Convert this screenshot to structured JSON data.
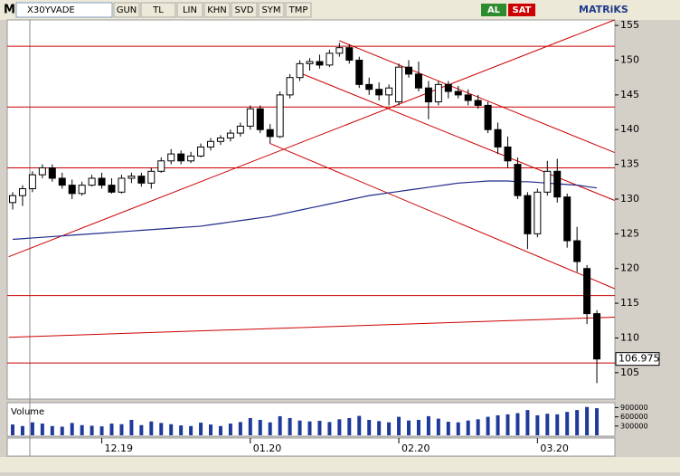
{
  "toolbar": {
    "menu": "M",
    "symbol": "X30YVADE",
    "buttons": [
      "GUN",
      "TL",
      "LIN",
      "KHN",
      "SVD",
      "SYM",
      "TMP"
    ],
    "buy": "AL",
    "sell": "SAT",
    "brand": "MATRiKS"
  },
  "chart_data": {
    "type": "candlestick",
    "categories": [
      null,
      null,
      null,
      null,
      null,
      null,
      null,
      null,
      null,
      "12.19",
      null,
      null,
      null,
      null,
      null,
      null,
      null,
      null,
      null,
      null,
      null,
      null,
      null,
      null,
      "01.20",
      null,
      null,
      null,
      null,
      null,
      null,
      null,
      null,
      null,
      null,
      null,
      null,
      null,
      null,
      "02.20",
      null,
      null,
      null,
      null,
      null,
      null,
      null,
      null,
      null,
      null,
      null,
      null,
      null,
      "03.20",
      null,
      null,
      null,
      null,
      null,
      null
    ],
    "open": [
      129.5,
      130.5,
      131.5,
      133.5,
      134.5,
      133,
      132,
      130.8,
      132,
      133,
      132,
      131,
      133,
      133.3,
      132.3,
      134,
      135.5,
      136.5,
      135.5,
      136.2,
      137.5,
      138.3,
      138.8,
      139.5,
      140.5,
      143,
      140,
      139,
      145,
      147.5,
      149.5,
      149.8,
      149.3,
      151,
      151.8,
      150,
      146.5,
      145.8,
      145,
      144,
      149,
      148,
      146,
      144,
      146.5,
      145.5,
      145,
      144.2,
      143.5,
      140,
      137.5,
      135,
      130.5,
      125,
      131,
      134,
      130.3,
      124,
      120,
      113.5
    ],
    "high": [
      131,
      132,
      134,
      135,
      135,
      133.8,
      132.8,
      132.5,
      133.5,
      133.8,
      133,
      133.5,
      133.8,
      133.8,
      134.5,
      136,
      137.2,
      137,
      136.8,
      138,
      138.8,
      139.2,
      140,
      141,
      143.5,
      143.5,
      140.8,
      145.5,
      148,
      150,
      150.3,
      150.8,
      151.5,
      152.5,
      152.3,
      150.5,
      147.5,
      146.8,
      146.5,
      149.5,
      150,
      149.8,
      147,
      147,
      147,
      146.3,
      145.8,
      145,
      144,
      141,
      139,
      136,
      131,
      131.5,
      135.5,
      135.8,
      130.8,
      126,
      120.5,
      114
    ],
    "low": [
      128.5,
      129,
      131,
      133,
      132.5,
      131.5,
      130,
      130.5,
      131.8,
      131.5,
      130.8,
      130.8,
      132.3,
      131.8,
      131.5,
      133.8,
      135,
      135,
      135.2,
      136,
      137,
      137.8,
      138.3,
      139,
      140,
      139.5,
      138,
      138.8,
      144.5,
      147,
      148.5,
      148.8,
      149,
      150.5,
      149.5,
      146,
      145,
      144.2,
      143.5,
      143.5,
      147.5,
      145.5,
      141.5,
      143.5,
      144.5,
      144.5,
      143.5,
      143,
      139.5,
      136.5,
      134.5,
      130,
      122.8,
      124.5,
      130.5,
      129.5,
      123,
      119.5,
      112,
      103.5
    ],
    "close": [
      130.5,
      131.5,
      133.5,
      134.5,
      133,
      132,
      130.8,
      132,
      133,
      132,
      131,
      133,
      133.3,
      132.3,
      134,
      135.5,
      136.5,
      135.5,
      136.2,
      137.5,
      138.3,
      138.8,
      139.5,
      140.5,
      143,
      140,
      139,
      145,
      147.5,
      149.5,
      149.8,
      149.3,
      151,
      151.8,
      150,
      146.5,
      145.8,
      145,
      146,
      149,
      148,
      146,
      144,
      146.5,
      145.5,
      145,
      144.2,
      143.5,
      140,
      137.5,
      135.5,
      130.5,
      125,
      131,
      134,
      130.3,
      124,
      121,
      113.5,
      106.975
    ],
    "ma": {
      "color": "#1f2a8a",
      "values": [
        124.2,
        124.3,
        124.4,
        124.5,
        124.6,
        124.7,
        124.8,
        124.9,
        125.0,
        125.1,
        125.2,
        125.3,
        125.4,
        125.5,
        125.6,
        125.7,
        125.8,
        125.9,
        126.0,
        126.1,
        126.3,
        126.5,
        126.7,
        126.9,
        127.1,
        127.3,
        127.5,
        127.8,
        128.1,
        128.4,
        128.7,
        129.0,
        129.3,
        129.6,
        129.9,
        130.2,
        130.5,
        130.7,
        130.9,
        131.1,
        131.3,
        131.5,
        131.7,
        131.9,
        132.1,
        132.3,
        132.4,
        132.5,
        132.6,
        132.6,
        132.6,
        132.5,
        132.5,
        132.4,
        132.3,
        132.2,
        132.1,
        132.0,
        131.8,
        131.6
      ]
    },
    "ylim": [
      101.2,
      155.8
    ],
    "yticks": [
      105,
      110,
      115,
      120,
      125,
      130,
      135,
      140,
      145,
      150,
      155
    ],
    "levels": [
      152.0,
      143.25,
      134.5,
      116.1,
      106.4
    ],
    "trendlines": [
      {
        "from": [
          -0.4,
          121.7
        ],
        "to": [
          60.8,
          155.8
        ]
      },
      {
        "from": [
          33,
          152.8
        ],
        "to": [
          60.8,
          136.7
        ]
      },
      {
        "from": [
          29.3,
          148.0
        ],
        "to": [
          60.8,
          129.8
        ]
      },
      {
        "from": [
          26,
          138.0
        ],
        "to": [
          60.8,
          117.1
        ]
      },
      {
        "from": [
          -0.4,
          110.1
        ],
        "to": [
          60.8,
          113.0
        ]
      }
    ],
    "line_color": "#cc0000",
    "volume": {
      "label": "Volume",
      "color": "#1f3a9a",
      "ylim": [
        0,
        1000000
      ],
      "yticks": [
        300000,
        600000,
        900000
      ],
      "values": [
        350000,
        300000,
        420000,
        380000,
        300000,
        280000,
        400000,
        330000,
        310000,
        290000,
        380000,
        360000,
        500000,
        330000,
        450000,
        400000,
        360000,
        320000,
        300000,
        410000,
        350000,
        300000,
        380000,
        430000,
        560000,
        500000,
        420000,
        620000,
        560000,
        480000,
        450000,
        470000,
        430000,
        520000,
        560000,
        630000,
        500000,
        460000,
        420000,
        600000,
        480000,
        500000,
        620000,
        540000,
        440000,
        420000,
        480000,
        520000,
        600000,
        650000,
        680000,
        720000,
        820000,
        650000,
        700000,
        680000,
        760000,
        820000,
        920000,
        880000
      ]
    }
  }
}
